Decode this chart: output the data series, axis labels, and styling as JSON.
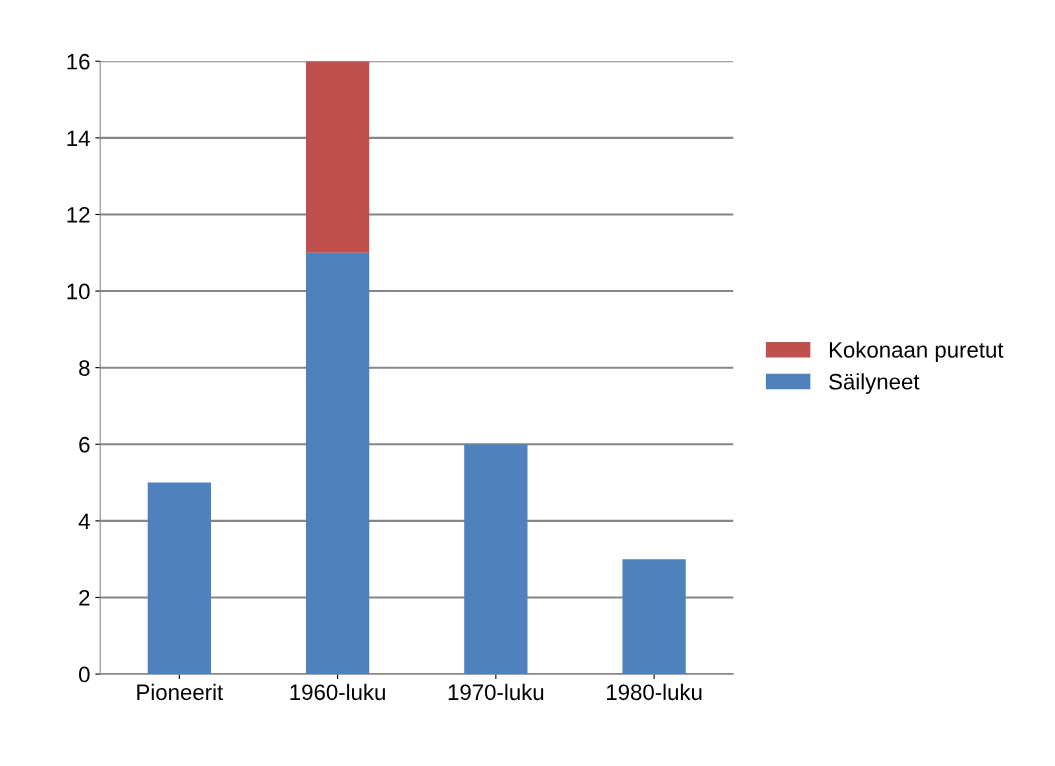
{
  "chart_data": {
    "type": "bar",
    "stacked": true,
    "categories": [
      "Pioneerit",
      "1960-luku",
      "1970-luku",
      "1980-luku"
    ],
    "series": [
      {
        "name": "Säilyneet",
        "color": "#4f81bd",
        "values": [
          5,
          11,
          6,
          3
        ]
      },
      {
        "name": "Kokonaan puretut",
        "color": "#c0504d",
        "values": [
          0,
          5,
          0,
          0
        ]
      }
    ],
    "ylim": [
      0,
      16
    ],
    "yticks": [
      0,
      2,
      4,
      6,
      8,
      10,
      12,
      14,
      16
    ],
    "grid": "y",
    "legend": "right"
  }
}
